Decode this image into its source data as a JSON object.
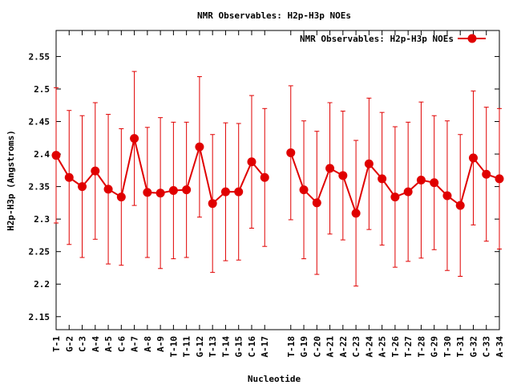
{
  "chart_data": {
    "type": "line",
    "title": "NMR Observables: H2p-H3p NOEs",
    "xlabel": "Nucleotide",
    "ylabel": "H2p-H3p (Angstroms)",
    "ylim": [
      2.13,
      2.59
    ],
    "yticks": [
      "2.15",
      "2.2",
      "2.25",
      "2.3",
      "2.35",
      "2.4",
      "2.45",
      "2.5",
      "2.55"
    ],
    "ytick_values": [
      2.15,
      2.2,
      2.25,
      2.3,
      2.35,
      2.4,
      2.45,
      2.5,
      2.55
    ],
    "legend": {
      "label": "NMR Observables: H2p-H3p NOEs",
      "placement": "top-right"
    },
    "grid": false,
    "color": "#e00000",
    "error_bars": true,
    "series": [
      {
        "name": "NMR Observables: H2p-H3p NOEs",
        "segments": [
          {
            "categories": [
              "T-1",
              "G-2",
              "C-3",
              "A-4",
              "A-5",
              "C-6",
              "A-7",
              "A-8",
              "A-9",
              "T-10",
              "T-11",
              "G-12",
              "T-13",
              "T-14",
              "G-15",
              "C-16",
              "A-17"
            ],
            "values": [
              2.398,
              2.364,
              2.35,
              2.374,
              2.346,
              2.334,
              2.424,
              2.341,
              2.34,
              2.344,
              2.345,
              2.411,
              2.324,
              2.342,
              2.342,
              2.388,
              2.364
            ],
            "errors": [
              0.104,
              0.103,
              0.109,
              0.105,
              0.115,
              0.105,
              0.103,
              0.1,
              0.116,
              0.105,
              0.104,
              0.108,
              0.106,
              0.106,
              0.105,
              0.102,
              0.106
            ]
          },
          {
            "categories": [
              "T-18",
              "G-19",
              "C-20",
              "A-21",
              "A-22",
              "C-23",
              "A-24",
              "A-25",
              "T-26",
              "T-27",
              "T-28",
              "G-29",
              "T-30",
              "T-31",
              "G-32",
              "C-33",
              "A-34"
            ],
            "values": [
              2.402,
              2.345,
              2.325,
              2.378,
              2.367,
              2.309,
              2.385,
              2.362,
              2.334,
              2.342,
              2.36,
              2.356,
              2.336,
              2.321,
              2.394,
              2.369,
              2.362
            ],
            "errors": [
              0.103,
              0.106,
              0.11,
              0.101,
              0.099,
              0.112,
              0.101,
              0.102,
              0.108,
              0.107,
              0.12,
              0.103,
              0.115,
              0.109,
              0.103,
              0.103,
              0.108
            ]
          }
        ]
      }
    ]
  }
}
